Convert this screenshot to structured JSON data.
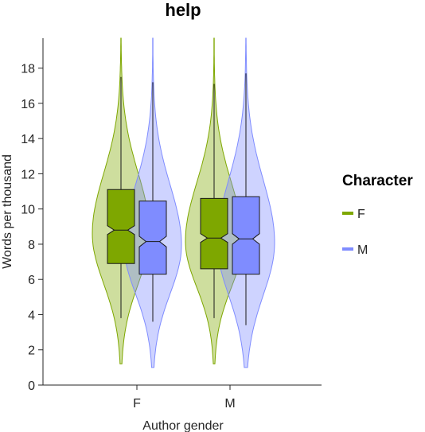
{
  "chart_data": {
    "type": "violin",
    "title": "help",
    "xlabel": "Author gender",
    "ylabel": "Words per thousand",
    "categories": [
      "F",
      "M"
    ],
    "ylim": [
      0,
      19.7
    ],
    "yticks": [
      0,
      2,
      4,
      6,
      8,
      10,
      12,
      14,
      16,
      18
    ],
    "grid": false,
    "legend": {
      "title": "Character",
      "position": "right",
      "entries": [
        {
          "label": "F",
          "color": "#7ea700"
        },
        {
          "label": "M",
          "color": "#7f8cff"
        }
      ]
    },
    "series": [
      {
        "name": "F",
        "color": "#7ea700",
        "groups": [
          {
            "category": "F",
            "q1": 6.9,
            "median": 8.8,
            "q3": 11.1,
            "notch_low": 8.55,
            "notch_high": 9.05,
            "whisker_low": 3.8,
            "whisker_high": 17.5,
            "min": 1.2,
            "max": 19.7
          },
          {
            "category": "M",
            "q1": 6.6,
            "median": 8.35,
            "q3": 10.6,
            "notch_low": 8.1,
            "notch_high": 8.6,
            "whisker_low": 3.8,
            "whisker_high": 17.1,
            "min": 1.2,
            "max": 19.7
          }
        ]
      },
      {
        "name": "M",
        "color": "#7f8cff",
        "groups": [
          {
            "category": "F",
            "q1": 6.3,
            "median": 8.15,
            "q3": 10.45,
            "notch_low": 7.85,
            "notch_high": 8.45,
            "whisker_low": 3.6,
            "whisker_high": 17.2,
            "min": 1.0,
            "max": 19.7
          },
          {
            "category": "M",
            "q1": 6.3,
            "median": 8.3,
            "q3": 10.7,
            "notch_low": 8.0,
            "notch_high": 8.6,
            "whisker_low": 3.4,
            "whisker_high": 17.7,
            "min": 1.0,
            "max": 19.7
          }
        ]
      }
    ]
  }
}
